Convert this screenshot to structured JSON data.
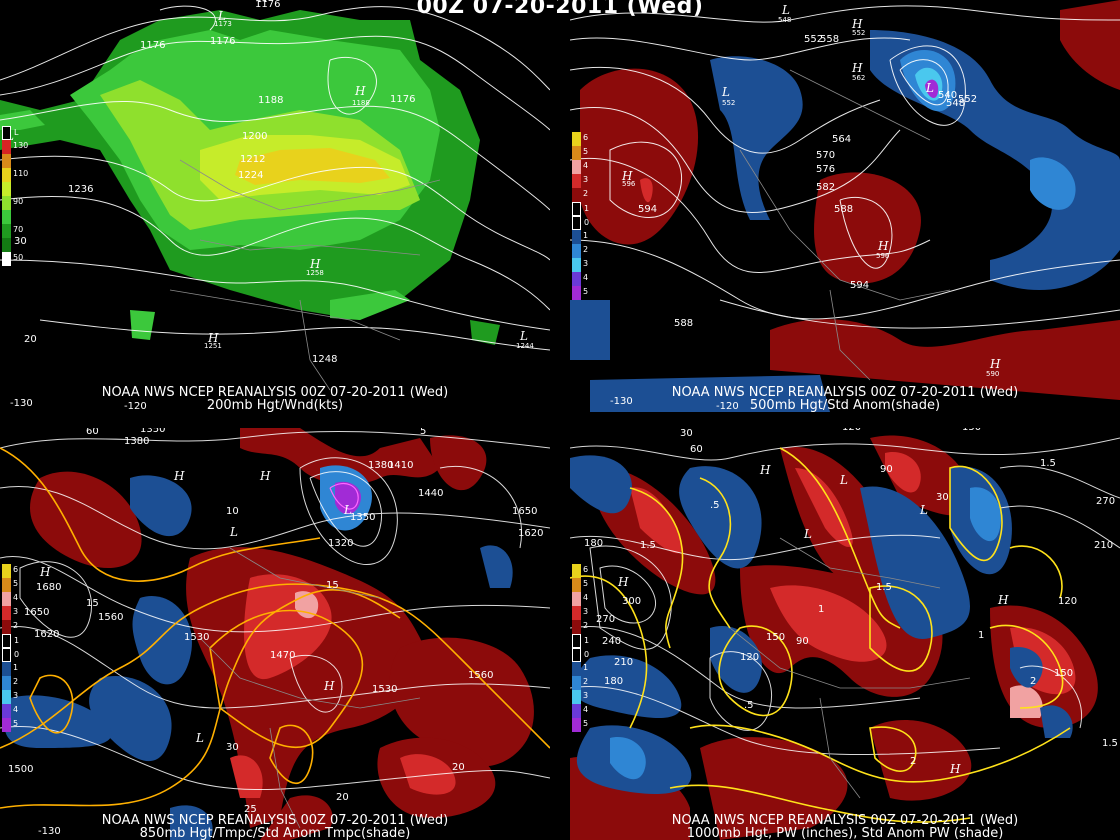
{
  "title": "00Z 07-20-2011 (Wed)",
  "colors": {
    "wind_dark_green": "#1f9b1f",
    "wind_green": "#3cc83c",
    "wind_light_green": "#8fe02d",
    "wind_yellow_green": "#c6ec2a",
    "wind_yellow": "#e8d21c",
    "anom_dark_red": "#8c0b0b",
    "anom_red": "#d42a2a",
    "anom_pink": "#f1a2a2",
    "anom_dark_blue": "#1c4f94",
    "anom_blue": "#2f86d4",
    "anom_cyan": "#4ac8ee",
    "anom_purple": "#a12bd6",
    "contour_white": "#ffffff",
    "contour_yellow": "#ffe21a",
    "border_gray": "#8a8a8a"
  },
  "panels": [
    {
      "id": "p1",
      "footer_line1": "NOAA NWS NCEP REANALYSIS 00Z 07-20-2011 (Wed)",
      "footer_line2": "200mb Hgt/Wnd(kts)",
      "lon_labels": [
        "-130",
        "-120"
      ],
      "legend": [
        "L",
        "130",
        "110",
        "90",
        "70",
        "50",
        "30"
      ],
      "contour_labels": [
        "1176",
        "1176",
        "1173",
        "1176",
        "1188",
        "1176",
        "1188",
        "1200",
        "1212",
        "1224",
        "1236",
        "1258",
        "1248",
        "1251",
        "1244",
        "20",
        "30"
      ],
      "centers": [
        "L",
        "H",
        "H",
        "L",
        "H",
        "L",
        "H"
      ]
    },
    {
      "id": "p2",
      "footer_line1": "NOAA NWS NCEP REANALYSIS 00Z 07-20-2011 (Wed)",
      "footer_line2": "500mb Hgt/Std Anom(shade)",
      "lon_labels": [
        "-130",
        "-120"
      ],
      "legend": [
        "6",
        "5",
        "4",
        "3",
        "2",
        "1",
        "0",
        "1",
        "2",
        "3",
        "4",
        "5"
      ],
      "contour_labels": [
        "548",
        "552",
        "558",
        "552",
        "562",
        "540",
        "548",
        "552",
        "552",
        "564",
        "570",
        "576",
        "582",
        "588",
        "594",
        "596",
        "594",
        "596",
        "588",
        "590"
      ],
      "centers": [
        "L",
        "H",
        "L",
        "H",
        "L",
        "H",
        "H",
        "H"
      ]
    },
    {
      "id": "p3",
      "footer_line1": "NOAA NWS NCEP REANALYSIS 00Z 07-20-2011 (Wed)",
      "footer_line2": "850mb Hgt/Tmpc/Std Anom Tmpc(shade)",
      "lon_labels": [
        "-130"
      ],
      "legend": [
        "6",
        "5",
        "4",
        "3",
        "2",
        "1",
        "0",
        "1",
        "2",
        "3",
        "4",
        "5"
      ],
      "contour_labels": [
        "1350",
        "1380",
        "60",
        "1380",
        "1410",
        "5",
        "1440",
        "1650",
        "1620",
        "1680",
        "1650",
        "1620",
        "1560",
        "1530",
        "1470",
        "1530",
        "1560",
        "1500",
        "1320",
        "1350",
        "15",
        "10",
        "20",
        "25",
        "30",
        "20",
        "15"
      ],
      "centers": [
        "H",
        "H",
        "L",
        "L",
        "H",
        "H",
        "L"
      ]
    },
    {
      "id": "p4",
      "footer_line1": "NOAA NWS NCEP REANALYSIS 00Z 07-20-2011 (Wed)",
      "footer_line2": "1000mb Hgt, PW (inches), Std Anom PW (shade)",
      "lon_labels": [],
      "legend": [
        "6",
        "5",
        "4",
        "3",
        "2",
        "1",
        "0",
        "1",
        "2",
        "3",
        "4",
        "5"
      ],
      "contour_labels": [
        "30",
        "60",
        "120",
        "150",
        "90",
        "30",
        "270",
        "210",
        "120",
        "150",
        "180",
        "150",
        "120",
        "90",
        "300",
        "270",
        "240",
        "210",
        "180",
        "1.5",
        "1.5",
        ".5",
        "1",
        "2",
        "1.5",
        ".5",
        "1",
        "1.5",
        "2"
      ],
      "centers": [
        "H",
        "L",
        "L",
        "L",
        "H",
        "H",
        "H"
      ]
    }
  ]
}
